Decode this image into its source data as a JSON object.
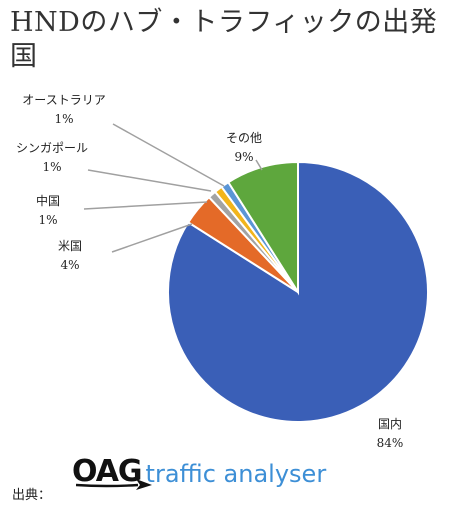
{
  "title": "HNDのハブ・トラフィックの出発国",
  "source": {
    "label": "出典：",
    "logo_mark": "OAG",
    "logo_text": "traffic analyser"
  },
  "chart_data": {
    "type": "pie",
    "title": "HNDのハブ・トラフィックの出発国",
    "start_angle_deg": 0,
    "direction": "clockwise",
    "slices": [
      {
        "label": "国内",
        "value": 84,
        "display": "84%",
        "color": "#3a5fb7"
      },
      {
        "label": "米国",
        "value": 4,
        "display": "4%",
        "color": "#e46a28"
      },
      {
        "label": "中国",
        "value": 1,
        "display": "1%",
        "color": "#a3a3a3"
      },
      {
        "label": "シンガポール",
        "value": 1,
        "display": "1%",
        "color": "#f2b51c"
      },
      {
        "label": "オーストラリア",
        "value": 1,
        "display": "1%",
        "color": "#5b96d6"
      },
      {
        "label": "その他",
        "value": 9,
        "display": "9%",
        "color": "#5ea73d"
      }
    ]
  }
}
